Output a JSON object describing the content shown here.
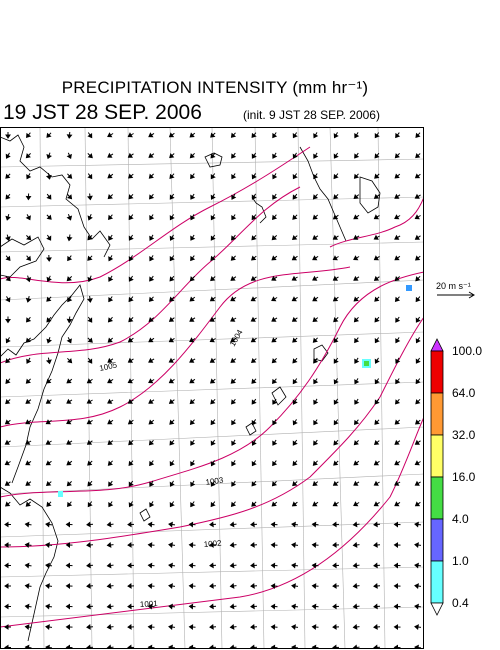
{
  "title": "PRECIPITATION INTENSITY (mm hr⁻¹)",
  "valid_time": "19 JST 28 SEP. 2006",
  "init_time": "(init. 9 JST 28 SEP. 2006)",
  "wind_scale": {
    "label": "20 m s⁻¹"
  },
  "colorbar": {
    "labels": [
      "100.0",
      "64.0",
      "32.0",
      "16.0",
      "4.0",
      "1.0",
      "0.4"
    ],
    "colors": [
      "#cc33ff",
      "#ee0000",
      "#ff9933",
      "#ffff66",
      "#44dd44",
      "#6666ff",
      "#66ffff"
    ]
  },
  "isobars": [
    {
      "label": "1005",
      "color": "#cc0066"
    },
    {
      "label": "1004",
      "color": "#cc0066"
    },
    {
      "label": "1003",
      "color": "#cc0066"
    },
    {
      "label": "1002",
      "color": "#cc0066"
    },
    {
      "label": "1001",
      "color": "#cc0066"
    }
  ]
}
